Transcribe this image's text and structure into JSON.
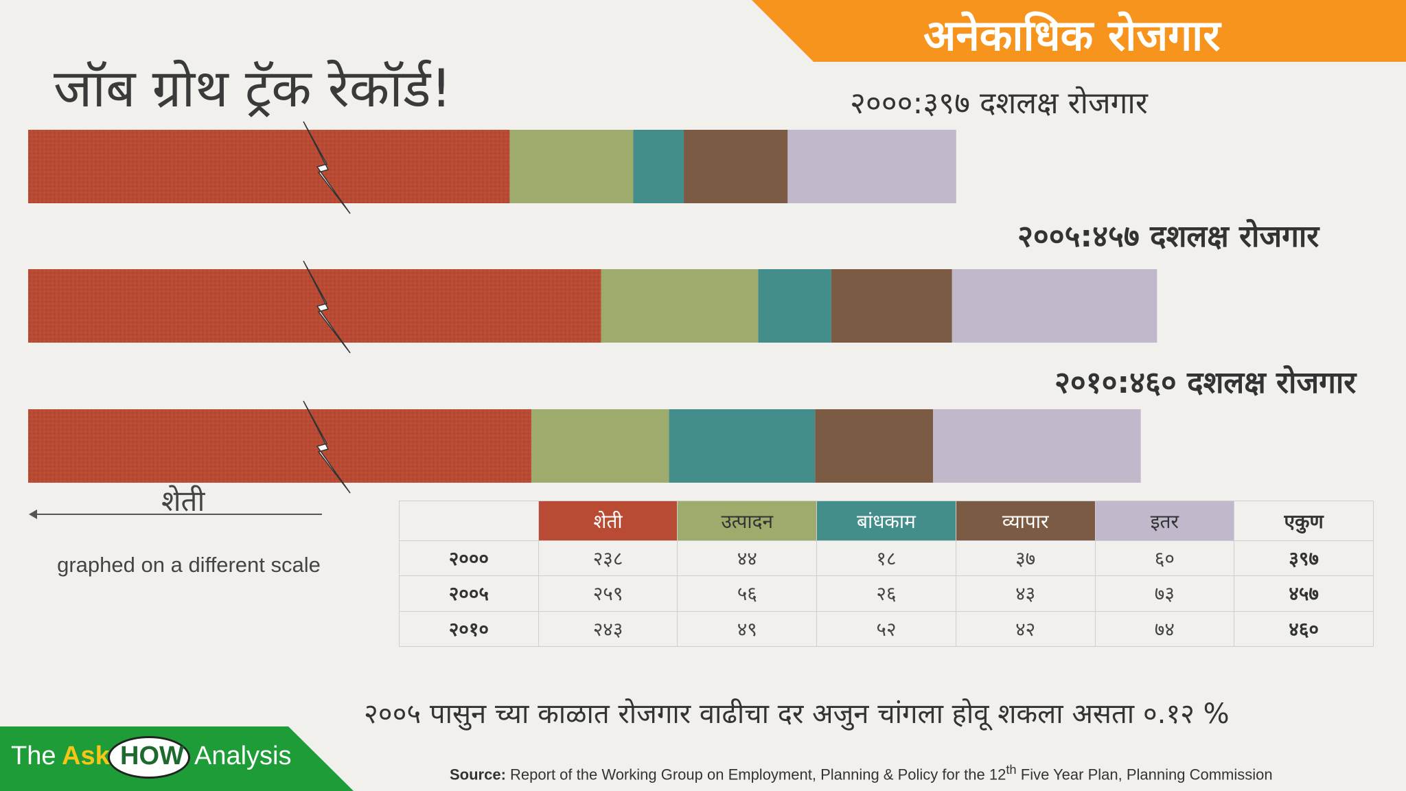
{
  "banner": {
    "title": "अनेकाधिक रोजगार"
  },
  "main_title": "जॉब ग्रोथ ट्रॅक रेकॉर्ड!",
  "chart_data": {
    "type": "bar",
    "stacked": true,
    "orientation": "horizontal",
    "categories": [
      "२०००",
      "२००५",
      "२०१०"
    ],
    "bar_titles": [
      "२०००:३९७ दशलक्ष रोजगार",
      "२००५:४५७ दशलक्ष रोजगार",
      "२०१०:४६० दशलक्ष रोजगार"
    ],
    "series": [
      {
        "name": "शेती",
        "color": "#b94a33",
        "values": [
          238,
          259,
          243
        ]
      },
      {
        "name": "उत्पादन",
        "color": "#9dab6c",
        "values": [
          44,
          56,
          49
        ]
      },
      {
        "name": "बांधकाम",
        "color": "#438d8b",
        "values": [
          18,
          26,
          52
        ]
      },
      {
        "name": "व्यापार",
        "color": "#7b5b43",
        "values": [
          37,
          43,
          42
        ]
      },
      {
        "name": "इतर",
        "color": "#c1b8cb",
        "values": [
          60,
          73,
          74
        ]
      }
    ],
    "totals": [
      397,
      457,
      460
    ],
    "axis_break": "शेती graphed on a different scale"
  },
  "legend": {
    "label": "शेती",
    "note": "graphed on a different scale"
  },
  "table": {
    "headers": [
      "",
      "शेती",
      "उत्पादन",
      "बांधकाम",
      "व्यापार",
      "इतर",
      "एकुण"
    ],
    "header_colors": [
      "transparent",
      "#b94a33",
      "#9dab6c",
      "#438d8b",
      "#7b5b43",
      "#c1b8cb",
      "transparent"
    ],
    "header_text_colors": [
      "#333333",
      "#ffffff",
      "#333333",
      "#ffffff",
      "#ffffff",
      "#333333",
      "#333333"
    ],
    "rows": [
      [
        "२०००",
        "२३८",
        "४४",
        "१८",
        "३७",
        "६०",
        "३९७"
      ],
      [
        "२००५",
        "२५९",
        "५६",
        "२६",
        "४३",
        "७३",
        "४५७"
      ],
      [
        "२०१०",
        "२४३",
        "४९",
        "५२",
        "४२",
        "७४",
        "४६०"
      ]
    ]
  },
  "bottom_line": "२००५ पासुन च्या काळात रोजगार वाढीचा दर अजुन चांगला होवू शकला असता ०.१२ %",
  "source": {
    "label": "Source:",
    "text_before": " Report of the Working Group on Employment, Planning & Policy for the 12",
    "superscript": "th",
    "text_after": " Five Year Plan, Planning Commission"
  },
  "brand": {
    "the": "The",
    "ask": "Ask",
    "how": "HOW",
    "analysis": "Analysis"
  }
}
